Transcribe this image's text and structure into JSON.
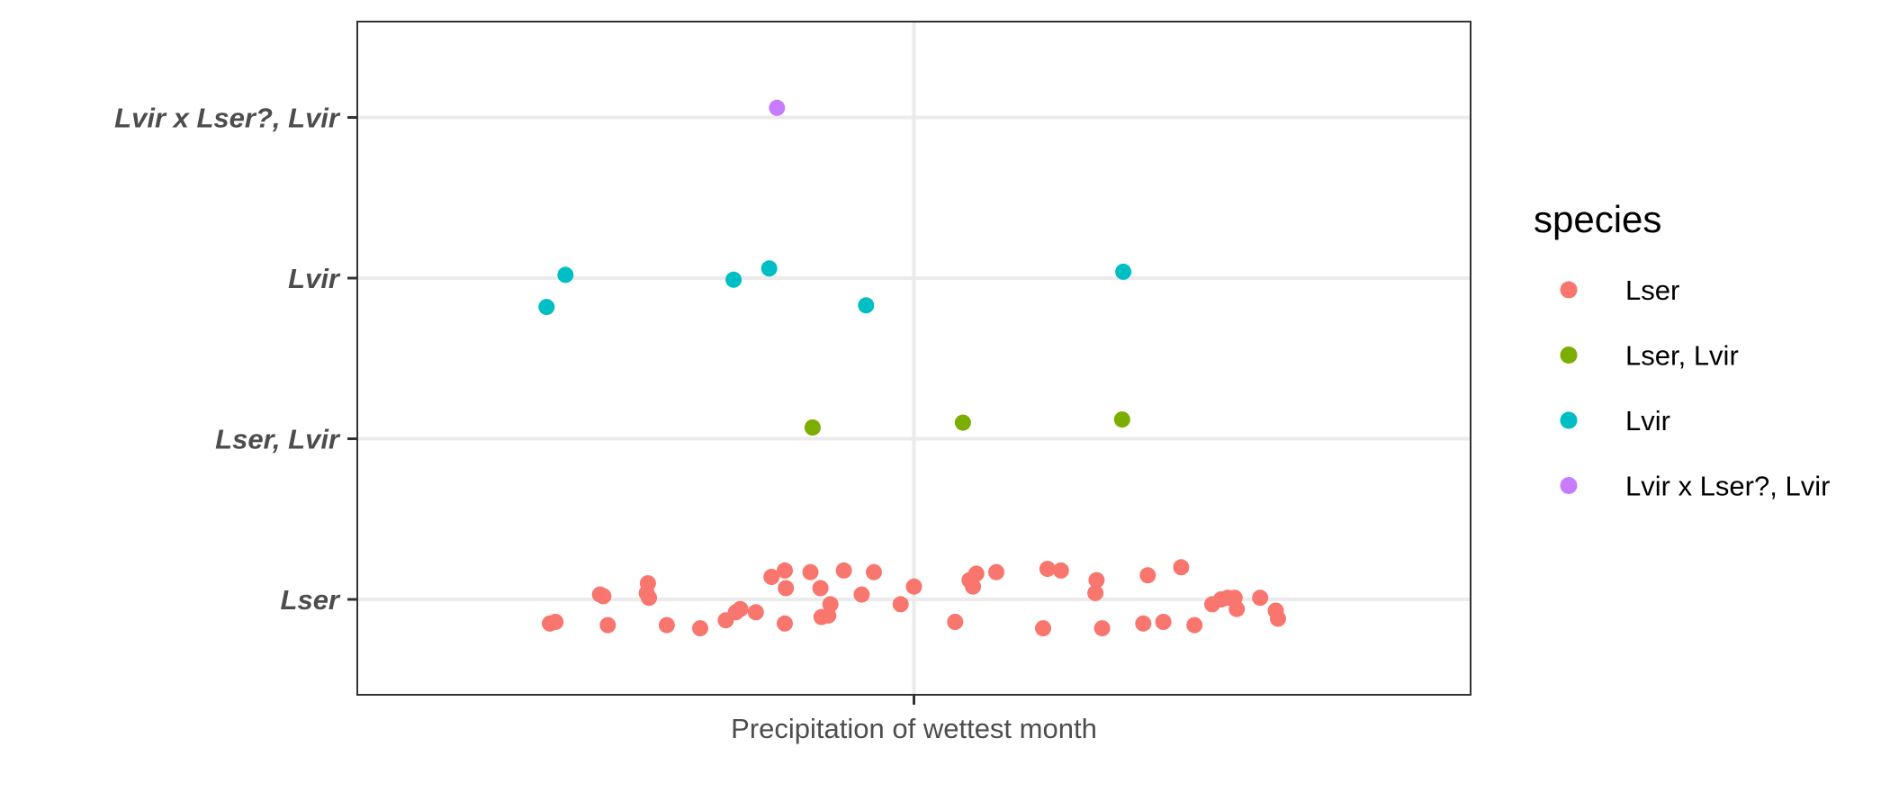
{
  "chart_data": {
    "type": "scatter",
    "title": "",
    "xlabel": "",
    "ylabel": "",
    "x_tick_label": "Precipitation of wettest month",
    "xlim": [
      0,
      1
    ],
    "categories": [
      "Lser",
      "Lser, Lvir",
      "Lvir",
      "Lvir x Lser?, Lvir"
    ],
    "legend": {
      "title": "species",
      "position": "right",
      "entries": [
        "Lser",
        "Lser, Lvir",
        "Lvir",
        "Lvir x Lser?, Lvir"
      ]
    },
    "colors": {
      "Lser": "#F8766D",
      "Lser, Lvir": "#7CAE00",
      "Lvir": "#00BFC4",
      "Lvir x Lser?, Lvir": "#C77CFF"
    },
    "grid": true,
    "series": [
      {
        "name": "Lser",
        "category": "Lser",
        "points": [
          [
            0.173,
            -0.15
          ],
          [
            0.178,
            -0.14
          ],
          [
            0.218,
            0.03
          ],
          [
            0.221,
            0.02
          ],
          [
            0.225,
            -0.16
          ],
          [
            0.26,
            0.04
          ],
          [
            0.261,
            0.1
          ],
          [
            0.262,
            0.01
          ],
          [
            0.278,
            -0.16
          ],
          [
            0.308,
            -0.18
          ],
          [
            0.331,
            -0.13
          ],
          [
            0.34,
            -0.08
          ],
          [
            0.344,
            -0.06
          ],
          [
            0.358,
            -0.08
          ],
          [
            0.372,
            0.14
          ],
          [
            0.384,
            0.18
          ],
          [
            0.385,
            0.07
          ],
          [
            0.384,
            -0.15
          ],
          [
            0.407,
            0.17
          ],
          [
            0.416,
            0.07
          ],
          [
            0.417,
            -0.11
          ],
          [
            0.423,
            -0.1
          ],
          [
            0.425,
            -0.03
          ],
          [
            0.437,
            0.18
          ],
          [
            0.453,
            0.03
          ],
          [
            0.464,
            0.17
          ],
          [
            0.488,
            -0.03
          ],
          [
            0.5,
            0.08
          ],
          [
            0.537,
            -0.14
          ],
          [
            0.55,
            0.12
          ],
          [
            0.553,
            0.08
          ],
          [
            0.556,
            0.16
          ],
          [
            0.574,
            0.17
          ],
          [
            0.616,
            -0.18
          ],
          [
            0.62,
            0.19
          ],
          [
            0.632,
            0.18
          ],
          [
            0.669,
            -0.18
          ],
          [
            0.664,
            0.12
          ],
          [
            0.663,
            0.04
          ],
          [
            0.706,
            -0.15
          ],
          [
            0.71,
            0.15
          ],
          [
            0.724,
            -0.14
          ],
          [
            0.74,
            0.2
          ],
          [
            0.752,
            -0.16
          ],
          [
            0.768,
            -0.03
          ],
          [
            0.776,
            0.0
          ],
          [
            0.782,
            0.01
          ],
          [
            0.788,
            0.01
          ],
          [
            0.79,
            -0.06
          ],
          [
            0.811,
            0.01
          ],
          [
            0.825,
            -0.07
          ],
          [
            0.827,
            -0.12
          ]
        ]
      },
      {
        "name": "Lser, Lvir",
        "category": "Lser, Lvir",
        "points": [
          [
            0.409,
            0.07
          ],
          [
            0.544,
            0.1
          ],
          [
            0.687,
            0.12
          ]
        ]
      },
      {
        "name": "Lvir",
        "category": "Lvir",
        "points": [
          [
            0.17,
            -0.18
          ],
          [
            0.187,
            0.02
          ],
          [
            0.338,
            -0.01
          ],
          [
            0.37,
            0.06
          ],
          [
            0.457,
            -0.17
          ],
          [
            0.688,
            0.04
          ]
        ]
      },
      {
        "name": "Lvir x Lser?, Lvir",
        "category": "Lvir x Lser?, Lvir",
        "points": [
          [
            0.377,
            0.06
          ]
        ]
      }
    ]
  }
}
